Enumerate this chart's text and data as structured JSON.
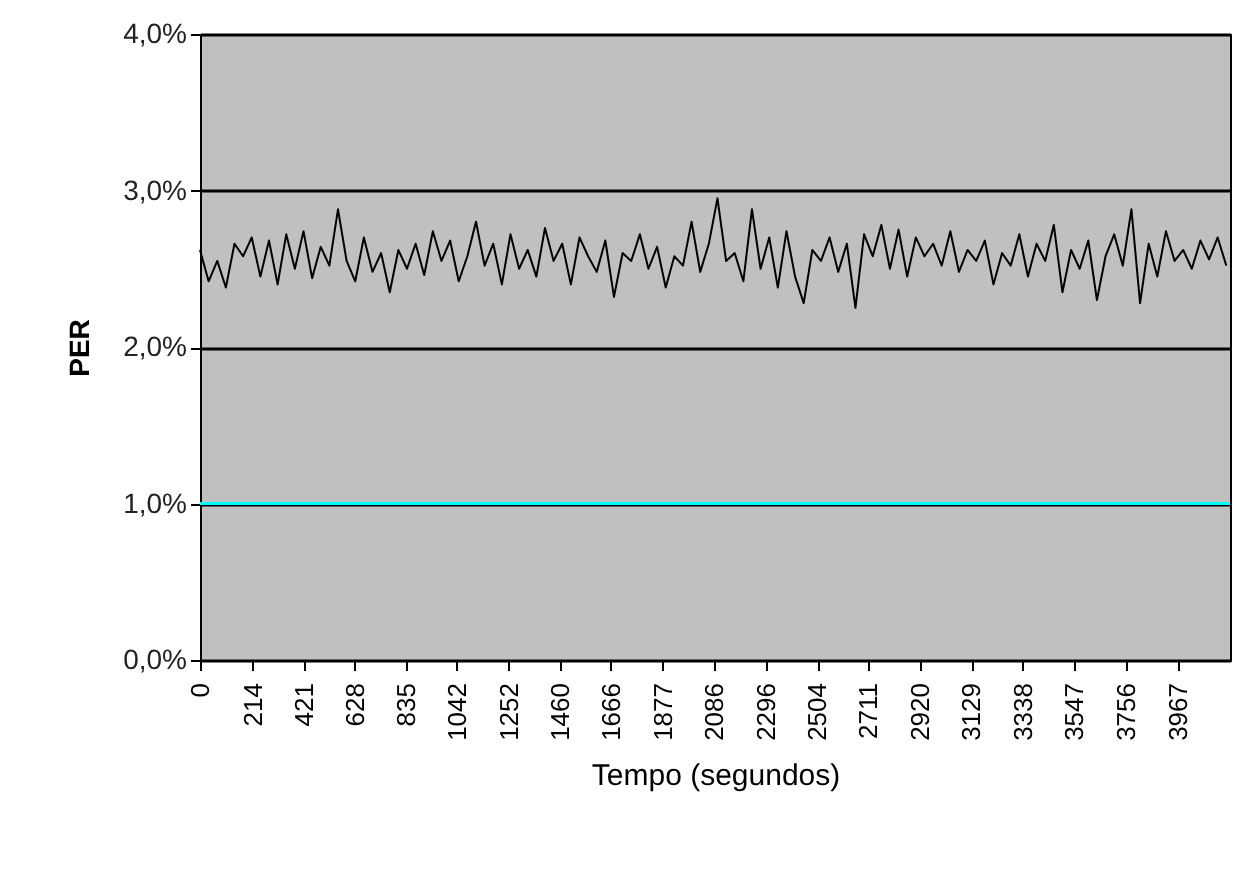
{
  "chart_data": {
    "type": "line",
    "xlabel": "Tempo (segundos)",
    "ylabel": "PER",
    "x": [
      0,
      35,
      70,
      105,
      140,
      175,
      210,
      245,
      280,
      315,
      350,
      385,
      420,
      455,
      490,
      525,
      560,
      595,
      630,
      665,
      700,
      735,
      770,
      805,
      840,
      875,
      910,
      945,
      980,
      1015,
      1050,
      1085,
      1120,
      1155,
      1190,
      1225,
      1260,
      1295,
      1330,
      1365,
      1400,
      1435,
      1470,
      1505,
      1540,
      1575,
      1610,
      1645,
      1680,
      1715,
      1750,
      1785,
      1820,
      1855,
      1890,
      1925,
      1960,
      1995,
      2030,
      2065,
      2100,
      2135,
      2170,
      2205,
      2240,
      2275,
      2310,
      2345,
      2380,
      2415,
      2450,
      2485,
      2520,
      2555,
      2590,
      2625,
      2660,
      2695,
      2730,
      2765,
      2800,
      2835,
      2870,
      2905,
      2940,
      2975,
      3010,
      3045,
      3080,
      3115,
      3150,
      3185,
      3220,
      3255,
      3290,
      3325,
      3360,
      3395,
      3430,
      3465,
      3500,
      3535,
      3570,
      3605,
      3640,
      3675,
      3710,
      3745,
      3780,
      3815,
      3850,
      3885,
      3920,
      3955,
      3990,
      4025,
      4060,
      4095,
      4130,
      4165
    ],
    "series": [
      {
        "color": "#000000",
        "values": [
          2.62,
          2.42,
          2.55,
          2.38,
          2.66,
          2.58,
          2.7,
          2.45,
          2.68,
          2.4,
          2.72,
          2.5,
          2.74,
          2.44,
          2.64,
          2.52,
          2.88,
          2.55,
          2.42,
          2.7,
          2.48,
          2.6,
          2.35,
          2.62,
          2.5,
          2.66,
          2.46,
          2.74,
          2.55,
          2.68,
          2.42,
          2.58,
          2.8,
          2.52,
          2.66,
          2.4,
          2.72,
          2.5,
          2.62,
          2.45,
          2.76,
          2.55,
          2.66,
          2.4,
          2.7,
          2.58,
          2.48,
          2.68,
          2.32,
          2.6,
          2.55,
          2.72,
          2.5,
          2.64,
          2.38,
          2.58,
          2.52,
          2.8,
          2.48,
          2.66,
          2.95,
          2.55,
          2.6,
          2.42,
          2.88,
          2.5,
          2.7,
          2.38,
          2.74,
          2.45,
          2.28,
          2.62,
          2.55,
          2.7,
          2.48,
          2.66,
          2.25,
          2.72,
          2.58,
          2.78,
          2.5,
          2.75,
          2.45,
          2.7,
          2.58,
          2.66,
          2.52,
          2.74,
          2.48,
          2.62,
          2.55,
          2.68,
          2.4,
          2.6,
          2.52,
          2.72,
          2.45,
          2.66,
          2.55,
          2.78,
          2.35,
          2.62,
          2.5,
          2.68,
          2.3,
          2.58,
          2.72,
          2.52,
          2.88,
          2.28,
          2.66,
          2.45,
          2.74,
          2.55,
          2.62,
          2.5,
          2.68,
          2.56,
          2.7,
          2.52
        ]
      }
    ],
    "xlim": [
      0,
      4180
    ],
    "xticks": [
      0,
      214,
      421,
      628,
      835,
      1042,
      1252,
      1460,
      1666,
      1877,
      2086,
      2296,
      2504,
      2711,
      2920,
      3129,
      3338,
      3547,
      3756,
      3967
    ],
    "ylim": [
      0,
      4
    ],
    "yticks": [
      {
        "value": 0,
        "label": "0,0%"
      },
      {
        "value": 1,
        "label": "1,0%"
      },
      {
        "value": 2,
        "label": "2,0%"
      },
      {
        "value": 3,
        "label": "3,0%"
      },
      {
        "value": 4,
        "label": "4,0%"
      }
    ],
    "grid": "y",
    "ref_lines": [
      {
        "axis": "y",
        "value": 1,
        "color": "#00ffff"
      }
    ]
  }
}
